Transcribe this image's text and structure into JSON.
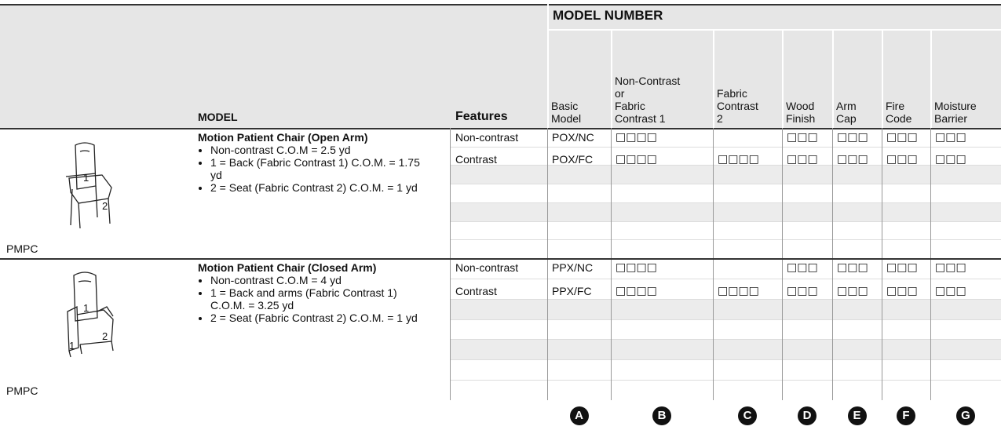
{
  "table": {
    "header": {
      "group": "MODEL NUMBER",
      "model": "MODEL",
      "features": "Features",
      "columns": [
        "Basic\nModel",
        "Non-Contrast\nor\nFabric\nContrast 1",
        "Fabric\nContrast\n2",
        "Wood\nFinish",
        "Arm\nCap",
        "Fire\nCode",
        "Moisture\nBarrier"
      ]
    },
    "rows": [
      {
        "code": "PMPC",
        "image_labels": [
          "1",
          "2"
        ],
        "title": "Motion Patient Chair (Open Arm)",
        "bullets": [
          "Non-contrast C.O.M = 2.5 yd",
          "1 = Back (Fabric Contrast 1) C.O.M. = 1.75 yd",
          "2 = Seat (Fabric Contrast 2) C.O.M. = 1 yd"
        ],
        "options": [
          {
            "feature": "Non-contrast",
            "cells": [
              "POX/NC",
              "□□□□",
              null,
              "□□□",
              "□□□",
              "□□□",
              "□□□"
            ]
          },
          {
            "feature": "Contrast",
            "cells": [
              "POX/FC",
              "□□□□",
              "□□□□",
              "□□□",
              "□□□",
              "□□□",
              "□□□"
            ]
          }
        ]
      },
      {
        "code": "PMPC",
        "image_labels": [
          "1",
          "1",
          "2"
        ],
        "title": "Motion Patient Chair (Closed Arm)",
        "bullets": [
          "Non-contrast C.O.M = 4 yd",
          "1 = Back and arms (Fabric Contrast 1) C.O.M. = 3.25 yd",
          "2 = Seat (Fabric Contrast 2) C.O.M. = 1 yd"
        ],
        "options": [
          {
            "feature": "Non-contrast",
            "cells": [
              "PPX/NC",
              "□□□□",
              null,
              "□□□",
              "□□□",
              "□□□",
              "□□□"
            ]
          },
          {
            "feature": "Contrast",
            "cells": [
              "PPX/FC",
              "□□□□",
              "□□□□",
              "□□□",
              "□□□",
              "□□□",
              "□□□"
            ]
          }
        ]
      }
    ],
    "column_letters": [
      "A",
      "B",
      "C",
      "D",
      "E",
      "F",
      "G"
    ]
  }
}
